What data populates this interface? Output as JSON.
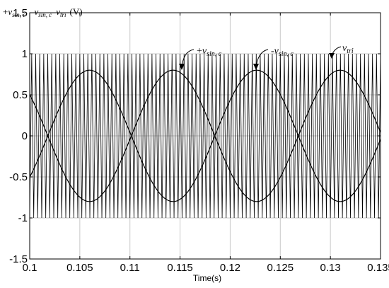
{
  "chart_data": {
    "type": "line",
    "title": "",
    "xlabel": "Time(s)",
    "ylabel_parts": {
      "a_sign": "+",
      "a_main": "v",
      "a_sub": "sin, c",
      "b_sign": "-",
      "b_main": "v",
      "b_sub": "sin, c",
      "c_main": "v",
      "c_sub": "tri",
      "unit": "(V)"
    },
    "xlim": [
      0.1,
      0.135
    ],
    "ylim": [
      -1.5,
      1.5
    ],
    "x_ticks": [
      0.1,
      0.105,
      0.11,
      0.115,
      0.12,
      0.125,
      0.13,
      0.135
    ],
    "x_tick_labels": [
      "0.1",
      "0.105",
      "0.11",
      "0.115",
      "0.12",
      "0.125",
      "0.13",
      "0.135"
    ],
    "y_ticks": [
      1.5,
      1,
      0.5,
      0,
      -0.5,
      -1,
      -1.5
    ],
    "y_tick_labels": [
      "1.5",
      "1",
      "0.5",
      "0",
      "-0.5",
      "-1",
      "-1.5"
    ],
    "grid": true,
    "series": [
      {
        "name": "+v_sin,c",
        "kind": "sine",
        "amplitude": 0.8,
        "frequency_hz": 60,
        "phase_deg": 141,
        "color": "#000000"
      },
      {
        "name": "-v_sin,c",
        "kind": "sine",
        "amplitude": 0.8,
        "frequency_hz": 60,
        "phase_deg": -39,
        "color": "#000000"
      },
      {
        "name": "v_tri",
        "kind": "triangle",
        "amplitude": 1.0,
        "period_s": 0.0004,
        "color": "#000000"
      }
    ],
    "annotations": [
      {
        "sign": "+",
        "main": "v",
        "sub": "sin, c",
        "series": "+v_sin,c"
      },
      {
        "sign": "-",
        "main": "v",
        "sub": "sin, c",
        "series": "-v_sin,c"
      },
      {
        "sign": "",
        "main": "v",
        "sub": "tri",
        "series": "v_tri"
      }
    ]
  }
}
